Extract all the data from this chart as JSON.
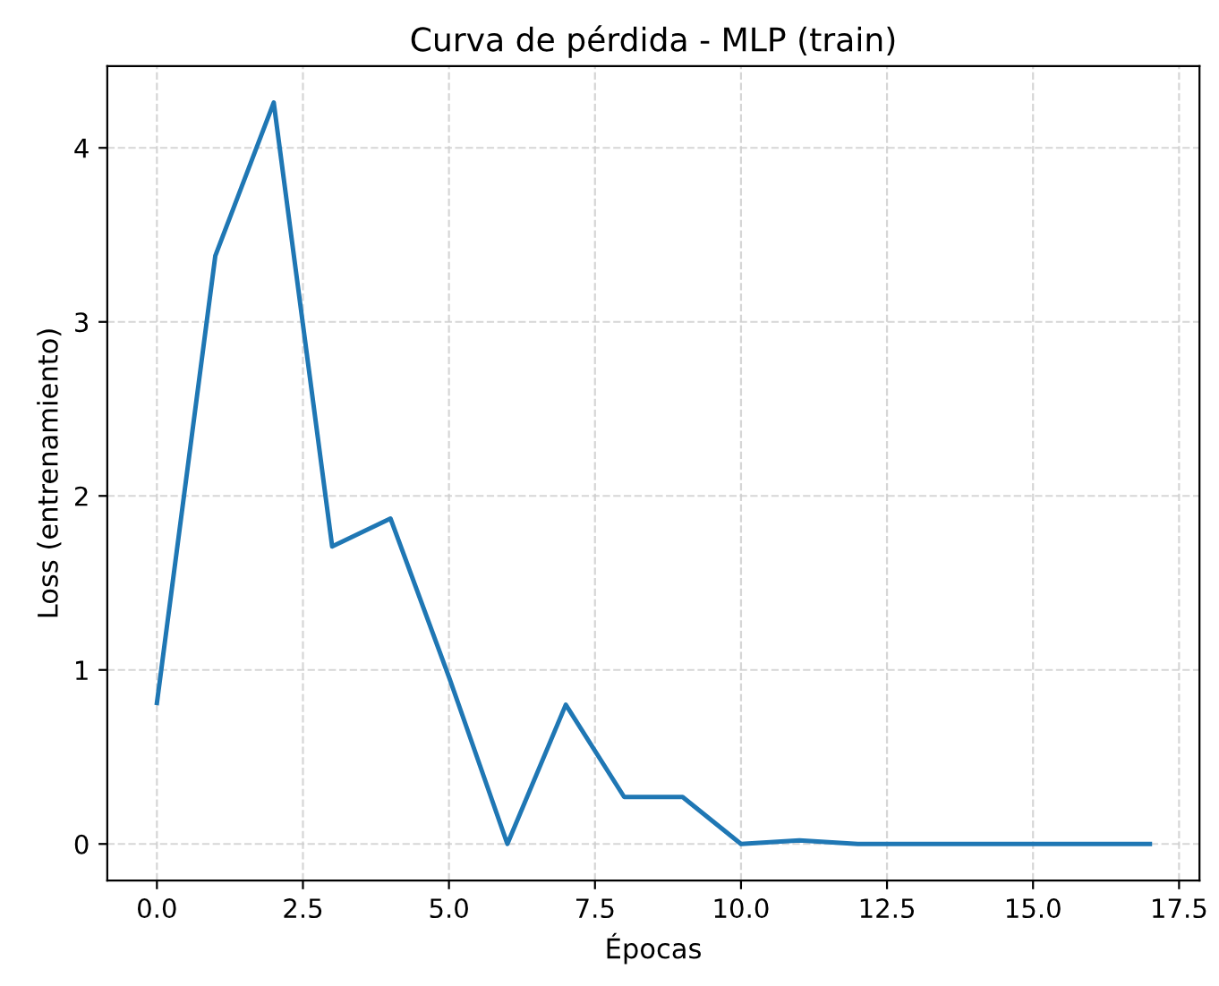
{
  "chart_data": {
    "type": "line",
    "title": "Curva de pérdida - MLP (train)",
    "xlabel": "Épocas",
    "ylabel": "Loss (entrenamiento)",
    "x": [
      0,
      1,
      2,
      3,
      4,
      5,
      6,
      7,
      8,
      9,
      10,
      11,
      12,
      13,
      14,
      15,
      16,
      17
    ],
    "series": [
      {
        "color": "#1f77b4",
        "values": [
          0.81,
          3.38,
          4.26,
          1.71,
          1.87,
          0.96,
          0.0,
          0.8,
          0.27,
          0.27,
          0.0,
          0.02,
          0.0,
          0.0,
          0.0,
          0.0,
          0.0,
          0.0
        ]
      }
    ],
    "xlim": [
      -0.85,
      17.85
    ],
    "ylim": [
      -0.21,
      4.47
    ],
    "xticks": [
      {
        "value": 0,
        "label": "0.0"
      },
      {
        "value": 2.5,
        "label": "2.5"
      },
      {
        "value": 5,
        "label": "5.0"
      },
      {
        "value": 7.5,
        "label": "7.5"
      },
      {
        "value": 10,
        "label": "10.0"
      },
      {
        "value": 12.5,
        "label": "12.5"
      },
      {
        "value": 15,
        "label": "15.0"
      },
      {
        "value": 17.5,
        "label": "17.5"
      }
    ],
    "yticks": [
      0,
      1,
      2,
      3,
      4
    ],
    "grid": true,
    "line_style": "solid",
    "marker": "none"
  }
}
